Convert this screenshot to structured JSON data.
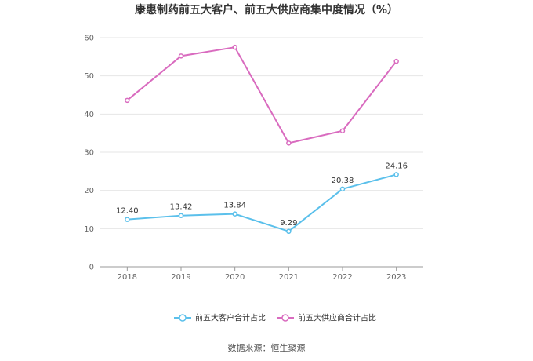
{
  "chart_data": {
    "type": "line",
    "title": "康惠制药前五大客户、前五大供应商集中度情况（%）",
    "categories": [
      "2018",
      "2019",
      "2020",
      "2021",
      "2022",
      "2023"
    ],
    "ylim": [
      0,
      60
    ],
    "yticks": [
      "0",
      "10",
      "20",
      "30",
      "40",
      "50",
      "60"
    ],
    "grid": true,
    "legend_position": "bottom",
    "series": [
      {
        "name": "前五大客户合计占比",
        "color": "#5bc0eb",
        "values": [
          12.4,
          13.42,
          13.84,
          9.29,
          20.38,
          24.16
        ],
        "labels": [
          "12.40",
          "13.42",
          "13.84",
          "9.29",
          "20.38",
          "24.16"
        ]
      },
      {
        "name": "前五大供应商合计占比",
        "color": "#d96bbf",
        "values": [
          43.6,
          55.2,
          57.5,
          32.4,
          35.6,
          53.8
        ],
        "labels": []
      }
    ]
  },
  "source_text": "数据来源：恒生聚源"
}
